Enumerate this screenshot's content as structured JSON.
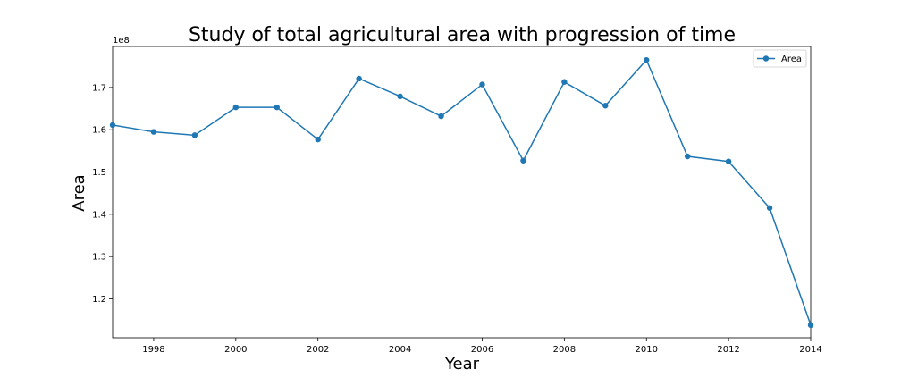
{
  "chart_data": {
    "type": "line",
    "title": "Study of total agricultural area with progression of time",
    "xlabel": "Year",
    "ylabel": "Area",
    "y_offset_label": "1e8",
    "y_scale": 100000000,
    "xlim": [
      1997,
      2014
    ],
    "ylim": [
      110800000,
      179700000
    ],
    "xticks": [
      1998,
      2000,
      2002,
      2004,
      2006,
      2008,
      2010,
      2012,
      2014
    ],
    "yticks": [
      120000000,
      130000000,
      140000000,
      150000000,
      160000000,
      170000000
    ],
    "ytick_labels": [
      "1.2",
      "1.3",
      "1.4",
      "1.5",
      "1.6",
      "1.7"
    ],
    "grid": false,
    "legend_position": "top-right",
    "series": [
      {
        "name": "Area",
        "color": "#1f77b4",
        "marker": "circle",
        "x": [
          1997,
          1998,
          1999,
          2000,
          2001,
          2002,
          2003,
          2004,
          2005,
          2006,
          2007,
          2008,
          2009,
          2010,
          2011,
          2012,
          2013,
          2014
        ],
        "values": [
          161100000,
          159500000,
          158700000,
          165300000,
          165300000,
          157700000,
          172100000,
          167900000,
          163200000,
          170700000,
          152700000,
          171300000,
          165700000,
          176500000,
          153700000,
          152500000,
          141500000,
          113800000
        ]
      }
    ]
  }
}
